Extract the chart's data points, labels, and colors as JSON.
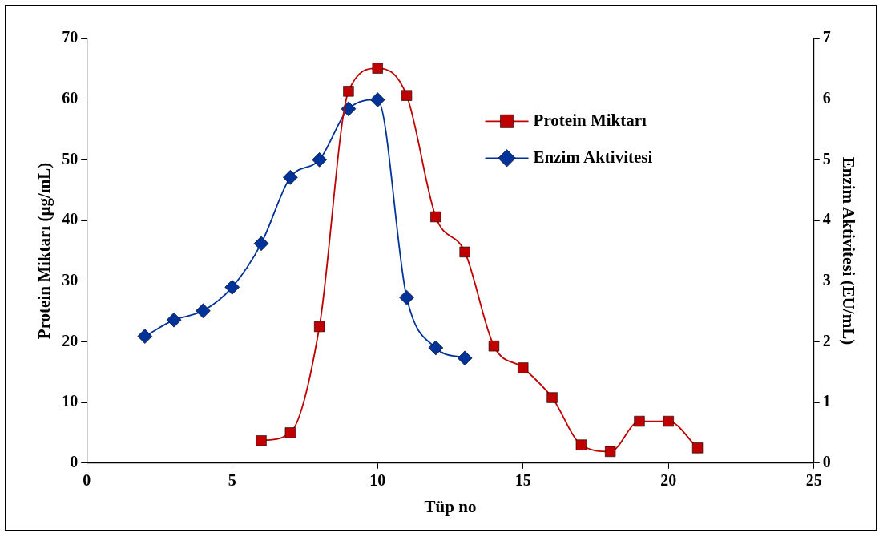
{
  "chart_data": {
    "type": "line",
    "xlabel": "Tüp no",
    "ylabel": "Protein Miktarı (µg/mL)",
    "y2label": "Enzim Aktivitesi (EU/mL)",
    "xlim": [
      0,
      25
    ],
    "xticks": [
      0,
      5,
      10,
      15,
      20,
      25
    ],
    "ylim": [
      0,
      70
    ],
    "yticks": [
      0,
      10,
      20,
      30,
      40,
      50,
      60,
      70
    ],
    "y2lim": [
      0,
      7
    ],
    "y2ticks": [
      0,
      1,
      2,
      3,
      4,
      5,
      6,
      7
    ],
    "grid": false,
    "legend": "top right",
    "line_style": "solid",
    "series": [
      {
        "name": "Protein Miktarı",
        "color": "#c00000",
        "marker": "square",
        "x": [
          6,
          7,
          8,
          9,
          10,
          11,
          12,
          13,
          14,
          15,
          16,
          17,
          18,
          19,
          20,
          21
        ],
        "values": [
          3.7,
          5.0,
          22.5,
          61.3,
          65.1,
          60.6,
          40.6,
          34.8,
          19.3,
          15.7,
          10.8,
          3.0,
          1.9,
          6.9,
          6.9,
          2.5
        ]
      },
      {
        "name": "Enzim Aktivitesi",
        "color": "#003399",
        "marker": "diamond",
        "axis": "y2",
        "x": [
          2,
          3,
          4,
          5,
          6,
          7,
          8,
          9,
          10,
          11,
          12,
          13
        ],
        "values": [
          2.09,
          2.36,
          2.51,
          2.9,
          3.62,
          4.71,
          5.0,
          5.84,
          5.99,
          2.73,
          1.9,
          1.73
        ]
      }
    ]
  }
}
